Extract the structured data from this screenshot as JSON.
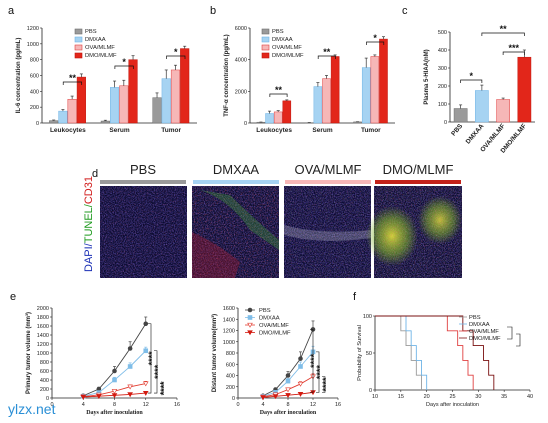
{
  "colors": {
    "pbs": "#9a9a9a",
    "dmxaa": "#a6d3f2",
    "ova": "#f6b7b7",
    "dmo": "#e2261a",
    "dmo_dark": "#7a1010"
  },
  "panel_labels": [
    "a",
    "b",
    "c",
    "d",
    "e",
    "f"
  ],
  "watermark": "ylzx.net",
  "chart_data": [
    {
      "id": "a",
      "type": "bar",
      "ylabel": "IL-6 concentration (pg/mL)",
      "ylim": [
        0,
        1200
      ],
      "yticks": [
        0,
        200,
        400,
        600,
        800,
        1000,
        1200
      ],
      "categories": [
        "Leukocytes",
        "Serum",
        "Tumor"
      ],
      "series": [
        {
          "name": "PBS",
          "values": [
            30,
            25,
            320
          ]
        },
        {
          "name": "DMXAA",
          "values": [
            150,
            450,
            560
          ]
        },
        {
          "name": "OVA/MLMF",
          "values": [
            300,
            470,
            670
          ]
        },
        {
          "name": "DMO/MLMF",
          "values": [
            580,
            800,
            940
          ]
        }
      ],
      "errors": [
        [
          8,
          10,
          60
        ],
        [
          20,
          80,
          110
        ],
        [
          40,
          70,
          60
        ],
        [
          40,
          50,
          30
        ]
      ],
      "significance": [
        "**",
        "*",
        "*"
      ]
    },
    {
      "id": "b",
      "type": "bar",
      "ylabel": "TNF-α concentration (pg/mL)",
      "ylim": [
        0,
        6000
      ],
      "yticks": [
        0,
        2000,
        4000,
        6000
      ],
      "categories": [
        "Leukocytes",
        "Serum",
        "Tumor"
      ],
      "series": [
        {
          "name": "PBS",
          "values": [
            50,
            20,
            70
          ]
        },
        {
          "name": "DMXAA",
          "values": [
            600,
            2300,
            3500
          ]
        },
        {
          "name": "OVA/MLMF",
          "values": [
            700,
            2800,
            4200
          ]
        },
        {
          "name": "DMO/MLMF",
          "values": [
            1400,
            4200,
            5300
          ]
        }
      ],
      "errors": [
        [
          10,
          10,
          10
        ],
        [
          150,
          250,
          600
        ],
        [
          80,
          200,
          100
        ],
        [
          60,
          100,
          150
        ]
      ],
      "significance": [
        "**",
        "**",
        "*"
      ]
    },
    {
      "id": "c",
      "type": "bar",
      "ylabel": "Plasma 5-HIAA(nM)",
      "ylim": [
        0,
        500
      ],
      "yticks": [
        0,
        100,
        200,
        300,
        400,
        500
      ],
      "categories": [
        "PBS",
        "DMXAA",
        "OVA/MLMF",
        "DMO/MLMF"
      ],
      "values": [
        75,
        175,
        125,
        360
      ],
      "errors": [
        20,
        30,
        8,
        40
      ],
      "significance": [
        "*",
        "**",
        "***"
      ]
    },
    {
      "id": "e1",
      "type": "line",
      "ylabel": "Primary tumor volume (mm³)",
      "xlabel": "Days after inoculation",
      "xlim": [
        0,
        16
      ],
      "xticks": [
        0,
        4,
        8,
        12,
        16
      ],
      "ylim": [
        0,
        2000
      ],
      "yticks": [
        0,
        200,
        400,
        600,
        800,
        1000,
        1200,
        1400,
        1600,
        1800,
        2000
      ],
      "x": [
        4,
        6,
        8,
        10,
        12
      ],
      "series": [
        {
          "name": "PBS",
          "values": [
            50,
            200,
            600,
            1100,
            1650
          ]
        },
        {
          "name": "DMXAA",
          "values": [
            40,
            120,
            400,
            700,
            1050
          ]
        },
        {
          "name": "OVA/MLMF",
          "values": [
            30,
            70,
            150,
            250,
            320
          ]
        },
        {
          "name": "DMO/MLMF",
          "values": [
            20,
            40,
            60,
            80,
            110
          ]
        }
      ],
      "errors": [
        [
          10,
          40,
          100,
          150,
          150
        ],
        [
          10,
          30,
          60,
          80,
          80
        ],
        [
          10,
          20,
          30,
          40,
          50
        ],
        [
          5,
          10,
          10,
          15,
          20
        ]
      ],
      "significance": [
        "****",
        "****",
        "****"
      ]
    },
    {
      "id": "e2",
      "type": "line",
      "ylabel": "Distant tumor volume(mm³)",
      "xlabel": "Days after inoculation",
      "xlim": [
        0,
        16
      ],
      "xticks": [
        0,
        4,
        8,
        12,
        16
      ],
      "ylim": [
        0,
        1600
      ],
      "yticks": [
        0,
        200,
        400,
        600,
        800,
        1000,
        1200,
        1400,
        1600
      ],
      "x": [
        4,
        6,
        8,
        10,
        12
      ],
      "legend": [
        "PBS",
        "DMXAA",
        "OVA/MLMF",
        "DMO/MLMF"
      ],
      "series": [
        {
          "name": "PBS",
          "values": [
            40,
            150,
            400,
            700,
            1220
          ]
        },
        {
          "name": "DMXAA",
          "values": [
            30,
            100,
            300,
            560,
            820
          ]
        },
        {
          "name": "OVA/MLMF",
          "values": [
            20,
            60,
            150,
            250,
            380
          ]
        },
        {
          "name": "DMO/MLMF",
          "values": [
            10,
            30,
            50,
            70,
            100
          ]
        }
      ],
      "errors": [
        [
          10,
          30,
          70,
          120,
          150
        ],
        [
          10,
          20,
          50,
          80,
          100
        ],
        [
          5,
          15,
          30,
          40,
          50
        ],
        [
          5,
          10,
          10,
          15,
          20
        ]
      ],
      "significance": [
        "****",
        "****",
        "****"
      ]
    },
    {
      "id": "f",
      "type": "line",
      "ylabel": "Probability of Survival",
      "xlabel": "Days after inoculation",
      "xlim": [
        10,
        40
      ],
      "xticks": [
        10,
        15,
        20,
        25,
        30,
        35,
        40
      ],
      "ylim": [
        0,
        100
      ],
      "yticks": [
        0,
        50,
        100
      ],
      "legend": [
        "PBS",
        "DMXAA",
        "OVA/MLMF",
        "DMO/MLMF"
      ],
      "series": [
        {
          "name": "PBS",
          "x": [
            10,
            14,
            15,
            16,
            17,
            18,
            19
          ],
          "values": [
            100,
            100,
            80,
            60,
            40,
            20,
            0
          ]
        },
        {
          "name": "DMXAA",
          "x": [
            10,
            15,
            16,
            17,
            18,
            19,
            20
          ],
          "values": [
            100,
            100,
            80,
            60,
            40,
            20,
            0
          ]
        },
        {
          "name": "OVA/MLMF",
          "x": [
            10,
            22,
            24,
            26,
            27,
            28,
            29
          ],
          "values": [
            100,
            100,
            80,
            60,
            40,
            20,
            0
          ]
        },
        {
          "name": "DMO/MLMF",
          "x": [
            10,
            25,
            27,
            29,
            31,
            32,
            33
          ],
          "values": [
            100,
            100,
            80,
            60,
            40,
            20,
            0
          ]
        }
      ]
    }
  ],
  "image_panel": {
    "groups": [
      "PBS",
      "DMXAA",
      "OVA/MLMF",
      "DMO/MLMF"
    ],
    "stain_label_parts": [
      {
        "text": "DAPI/",
        "color": "#1a2fb5"
      },
      {
        "text": "TUNEL/",
        "color": "#1f9a1f"
      },
      {
        "text": "CD31",
        "color": "#d11c1c"
      }
    ]
  }
}
